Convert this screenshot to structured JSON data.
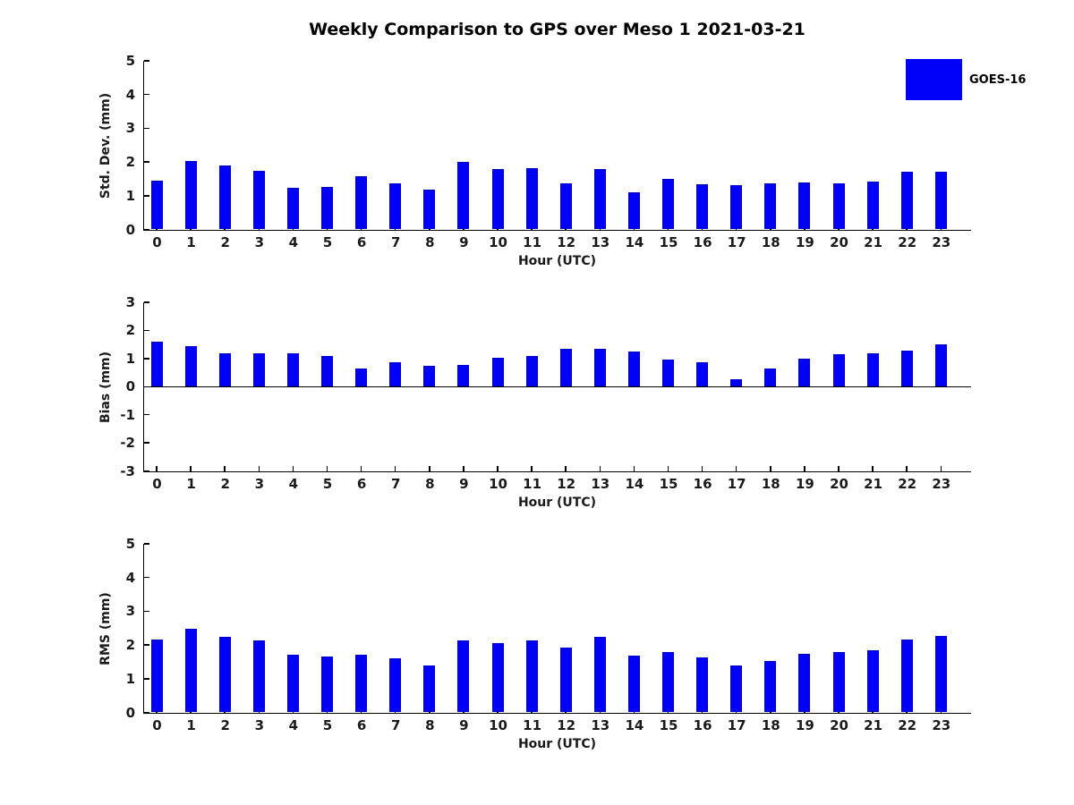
{
  "title": "Weekly Comparison to GPS over Meso 1 2021-03-21",
  "legend": {
    "label": "GOES-16",
    "color": "#0000fa",
    "position": "top-right"
  },
  "colors": {
    "bar_fill": "#0000fa",
    "bar_edge": "#0000c8",
    "axis": "#000000",
    "tick_label": "#1a1a1a",
    "background": "#ffffff"
  },
  "chart_data": [
    {
      "type": "bar",
      "id": "std-dev",
      "ylabel": "Std. Dev. (mm)",
      "xlabel": "Hour (UTC)",
      "ylim": [
        0,
        5
      ],
      "yticks": [
        0,
        1,
        2,
        3,
        4,
        5
      ],
      "grid": false,
      "categories": [
        "0",
        "1",
        "2",
        "3",
        "4",
        "5",
        "6",
        "7",
        "8",
        "9",
        "10",
        "11",
        "12",
        "13",
        "14",
        "15",
        "16",
        "17",
        "18",
        "19",
        "20",
        "21",
        "22",
        "23"
      ],
      "series": [
        {
          "name": "GOES-16",
          "values": [
            1.44,
            2.03,
            1.9,
            1.74,
            1.23,
            1.26,
            1.57,
            1.36,
            1.18,
            2.01,
            1.78,
            1.83,
            1.36,
            1.79,
            1.11,
            1.49,
            1.35,
            1.32,
            1.37,
            1.4,
            1.37,
            1.43,
            1.72,
            1.72
          ]
        }
      ]
    },
    {
      "type": "bar",
      "id": "bias",
      "ylabel": "Bias (mm)",
      "xlabel": "Hour (UTC)",
      "ylim": [
        -3,
        3
      ],
      "yticks": [
        -3,
        -2,
        -1,
        0,
        1,
        2,
        3
      ],
      "grid": false,
      "zero_line": true,
      "categories": [
        "0",
        "1",
        "2",
        "3",
        "4",
        "5",
        "6",
        "7",
        "8",
        "9",
        "10",
        "11",
        "12",
        "13",
        "14",
        "15",
        "16",
        "17",
        "18",
        "19",
        "20",
        "21",
        "22",
        "23"
      ],
      "series": [
        {
          "name": "GOES-16",
          "values": [
            1.61,
            1.45,
            1.17,
            1.2,
            1.18,
            1.1,
            0.64,
            0.87,
            0.74,
            0.77,
            1.04,
            1.1,
            1.34,
            1.35,
            1.24,
            0.97,
            0.87,
            0.27,
            0.63,
            1.0,
            1.14,
            1.17,
            1.29,
            1.51
          ]
        }
      ]
    },
    {
      "type": "bar",
      "id": "rms",
      "ylabel": "RMS (mm)",
      "xlabel": "Hour (UTC)",
      "ylim": [
        0,
        5
      ],
      "yticks": [
        0,
        1,
        2,
        3,
        4,
        5
      ],
      "grid": false,
      "categories": [
        "0",
        "1",
        "2",
        "3",
        "4",
        "5",
        "6",
        "7",
        "8",
        "9",
        "10",
        "11",
        "12",
        "13",
        "14",
        "15",
        "16",
        "17",
        "18",
        "19",
        "20",
        "21",
        "22",
        "23"
      ],
      "series": [
        {
          "name": "GOES-16",
          "values": [
            2.16,
            2.49,
            2.24,
            2.14,
            1.7,
            1.66,
            1.7,
            1.61,
            1.4,
            2.14,
            2.06,
            2.13,
            1.92,
            2.23,
            1.69,
            1.79,
            1.63,
            1.38,
            1.53,
            1.74,
            1.79,
            1.84,
            2.15,
            2.28
          ]
        }
      ]
    }
  ]
}
